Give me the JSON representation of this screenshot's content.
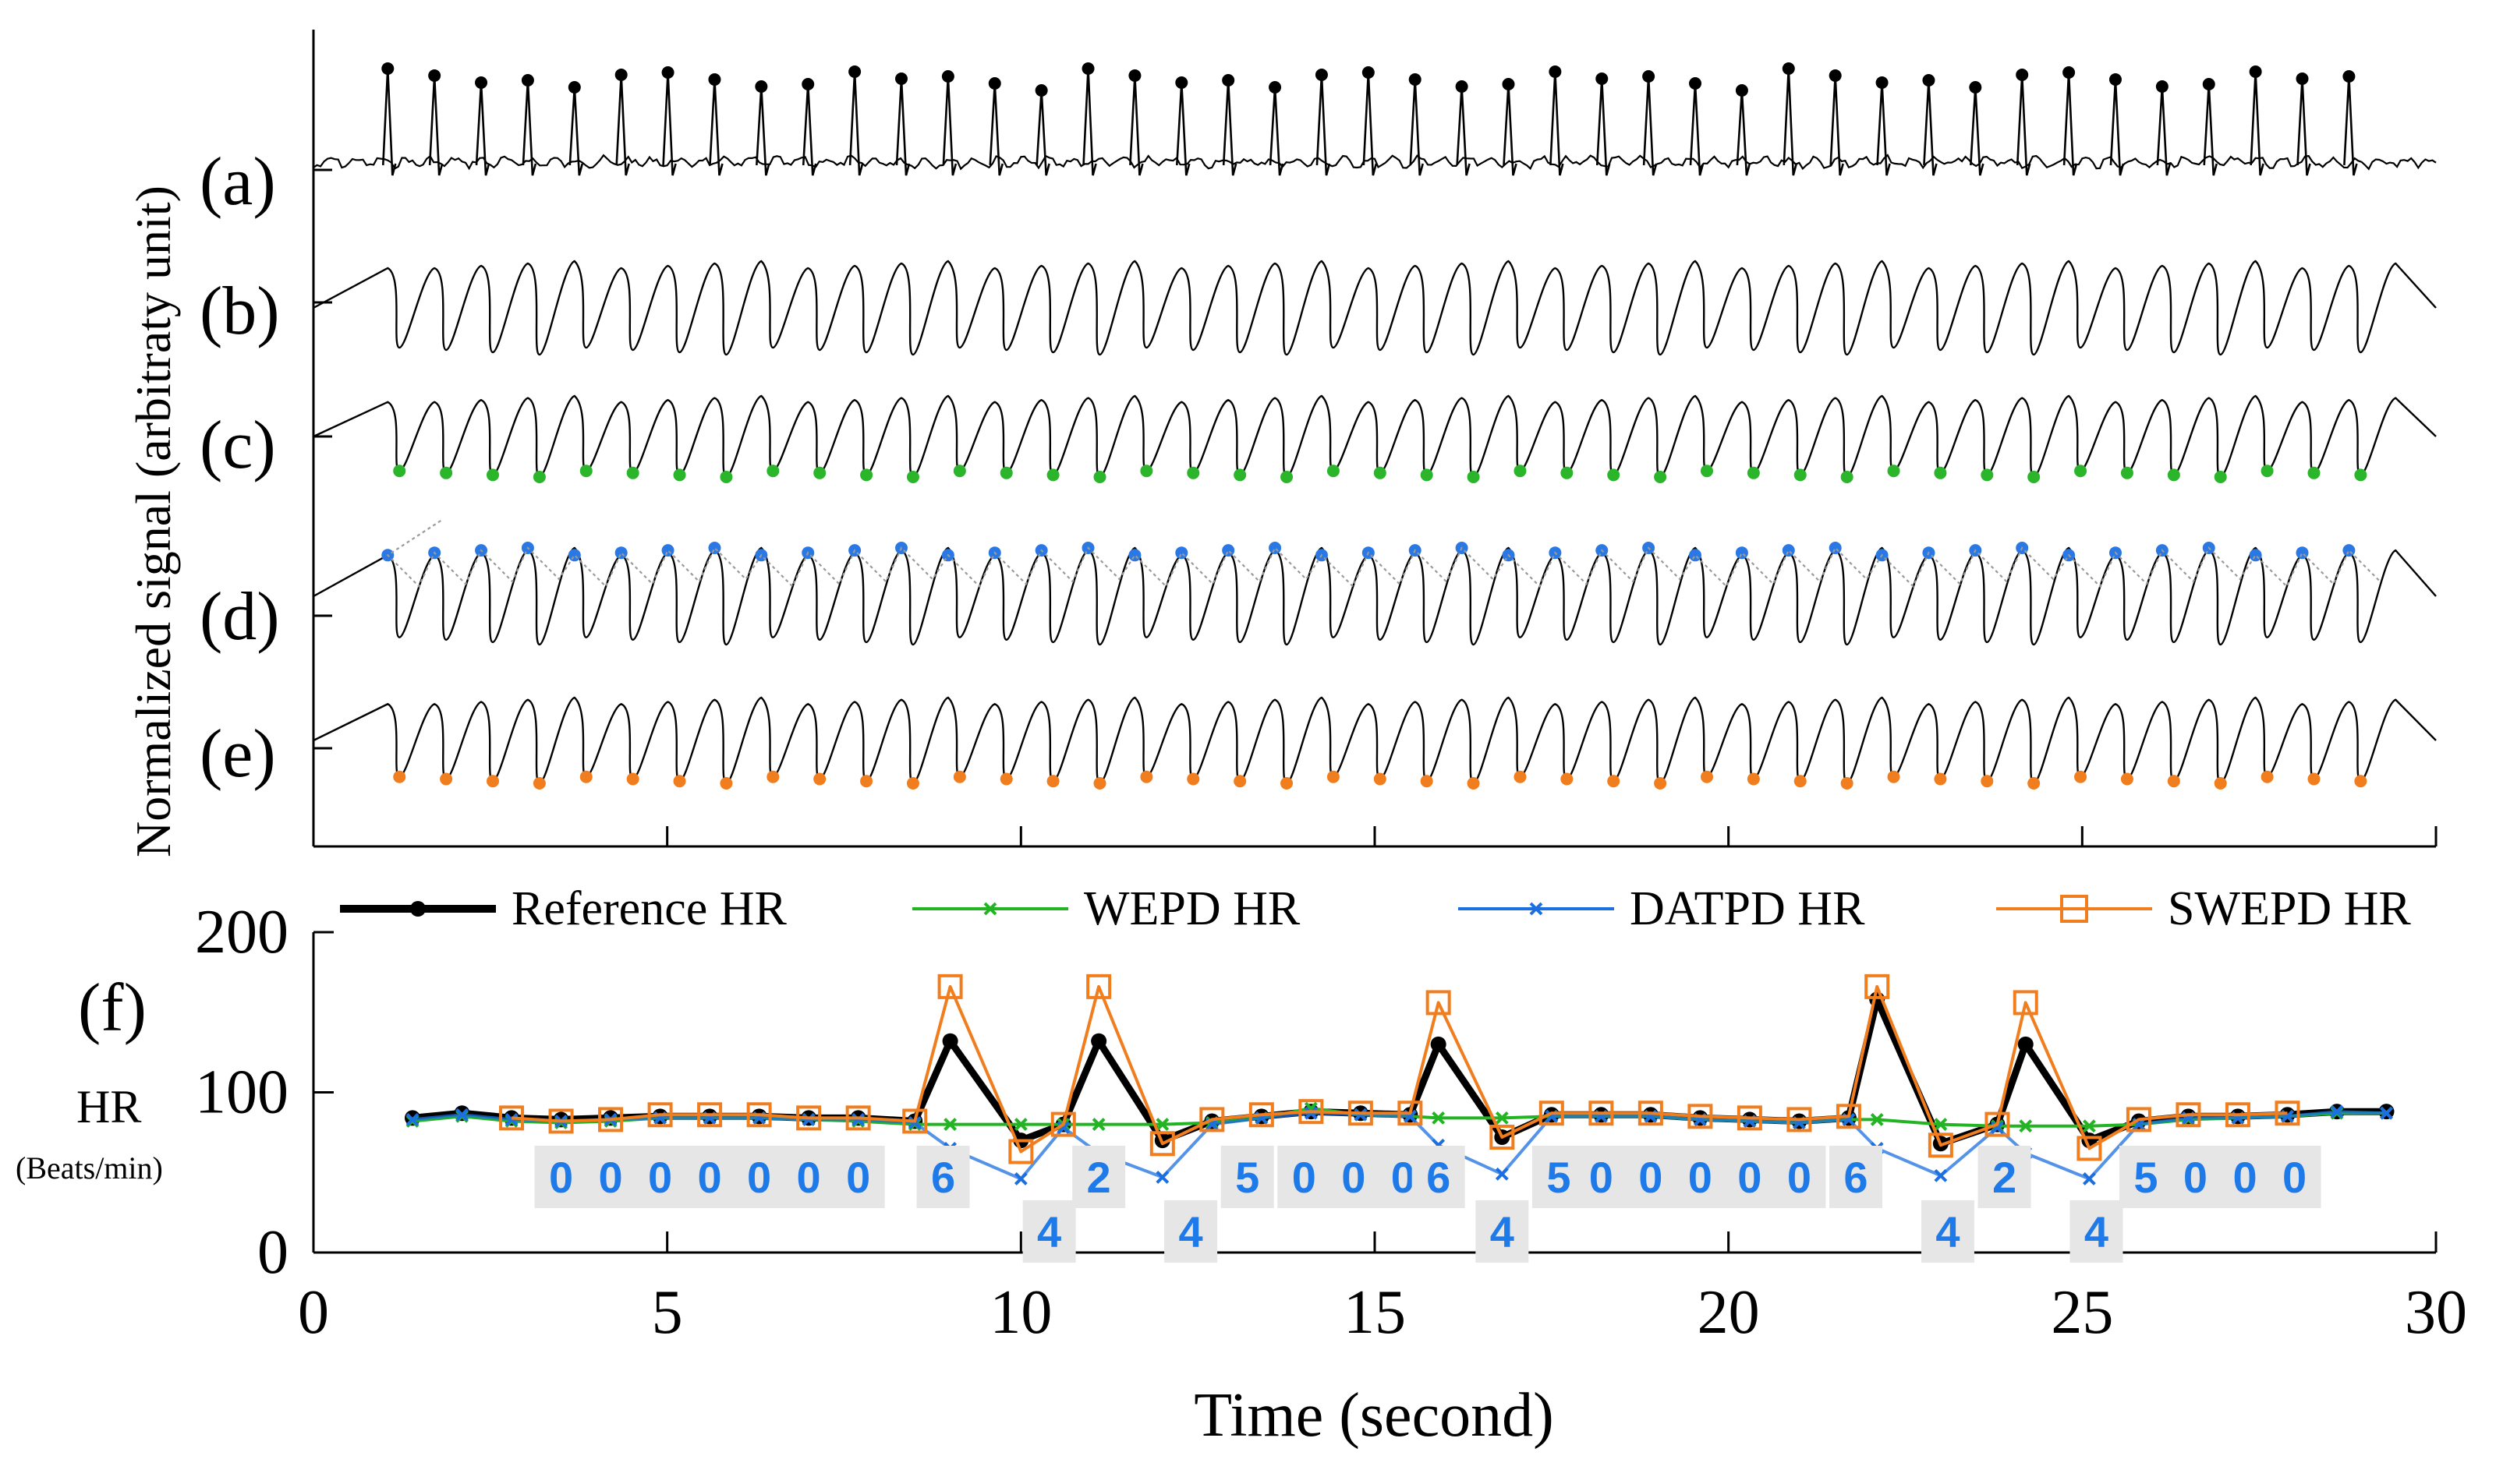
{
  "figure": {
    "y_axis_label_top": "Normalized signal (arbitraty unit)",
    "panel_labels": [
      "(a)",
      "(b)",
      "(c)",
      "(d)",
      "(e)",
      "(f)"
    ]
  },
  "colors": {
    "axis": "#000000",
    "reference": "#000000",
    "wepd": "#22b422",
    "datpd": "#1c6fe0",
    "swepd": "#f07d1e",
    "ecg_peak": "#000000",
    "c_marker": "#2bb52b",
    "d_marker": "#2a78e4",
    "e_marker": "#f07d1e",
    "envelope": "#9a9a9a",
    "badge_bg": "#e6e6e6",
    "badge_text": "#1e7ae8"
  },
  "chart_data": {
    "type": "line",
    "xlabel": "Time (second)",
    "xlim": [
      0,
      30
    ],
    "xticks": [
      0,
      5,
      10,
      15,
      20,
      25,
      30
    ],
    "ylabel_main": "HR",
    "ylabel_unit": "(Beats/min)",
    "ylim": [
      0,
      200
    ],
    "yticks": [
      0,
      100,
      200
    ],
    "legend_position": "top",
    "x": [
      1.4,
      2.1,
      2.8,
      3.5,
      4.2,
      4.9,
      5.6,
      6.3,
      7.0,
      7.7,
      8.5,
      9.0,
      10.0,
      10.6,
      11.1,
      12.0,
      12.7,
      13.4,
      14.1,
      14.8,
      15.5,
      15.9,
      16.8,
      17.5,
      18.2,
      18.9,
      19.6,
      20.3,
      21.0,
      21.7,
      22.1,
      23.0,
      23.8,
      24.2,
      25.1,
      25.8,
      26.5,
      27.2,
      27.9,
      28.6,
      29.3
    ],
    "series": [
      {
        "name": "Reference HR",
        "values": [
          84,
          87,
          84,
          83,
          84,
          85,
          85,
          85,
          84,
          84,
          82,
          132,
          70,
          80,
          132,
          70,
          82,
          85,
          88,
          87,
          86,
          130,
          72,
          86,
          86,
          86,
          84,
          83,
          82,
          84,
          158,
          68,
          80,
          130,
          70,
          82,
          85,
          85,
          86,
          88,
          88
        ]
      },
      {
        "name": "WEPD HR",
        "values": [
          82,
          85,
          82,
          81,
          82,
          84,
          84,
          84,
          83,
          82,
          80,
          80,
          80,
          80,
          80,
          80,
          81,
          84,
          90,
          86,
          85,
          84,
          84,
          85,
          85,
          85,
          83,
          82,
          81,
          83,
          83,
          80,
          79,
          79,
          79,
          80,
          83,
          84,
          85,
          87,
          87
        ]
      },
      {
        "name": "DATPD HR",
        "values": [
          83,
          86,
          83,
          82,
          83,
          84,
          84,
          84,
          83,
          83,
          81,
          65,
          46,
          78,
          62,
          47,
          80,
          84,
          87,
          86,
          85,
          67,
          49,
          85,
          85,
          85,
          83,
          82,
          81,
          83,
          65,
          48,
          78,
          62,
          46,
          80,
          84,
          84,
          85,
          88,
          87
        ]
      },
      {
        "name": "SWEPD HR",
        "values": [
          null,
          null,
          84,
          82,
          83,
          86,
          86,
          86,
          84,
          84,
          82,
          166,
          63,
          80,
          166,
          68,
          83,
          86,
          88,
          87,
          87,
          156,
          72,
          87,
          87,
          87,
          85,
          84,
          83,
          85,
          166,
          67,
          80,
          156,
          65,
          83,
          86,
          86,
          87,
          null,
          null
        ]
      }
    ],
    "error_badges": [
      "0",
      "0",
      "0",
      "0",
      "0",
      "0",
      "0",
      "6",
      "4",
      "2",
      "4",
      "5",
      "0",
      "0",
      "0",
      "6",
      "4",
      "5",
      "0",
      "0",
      "0",
      "0",
      "0",
      "6",
      "4",
      "2",
      "4",
      "5",
      "0",
      "0",
      "0"
    ],
    "annotations": [
      {
        "x": 3.5,
        "level": "mid",
        "text": "0"
      },
      {
        "x": 4.2,
        "level": "mid",
        "text": "0"
      },
      {
        "x": 4.9,
        "level": "mid",
        "text": "0"
      },
      {
        "x": 5.6,
        "level": "mid",
        "text": "0"
      },
      {
        "x": 6.3,
        "level": "mid",
        "text": "0"
      },
      {
        "x": 7.0,
        "level": "mid",
        "text": "0"
      },
      {
        "x": 7.7,
        "level": "mid",
        "text": "0"
      },
      {
        "x": 8.9,
        "level": "mid",
        "text": "6"
      },
      {
        "x": 10.4,
        "level": "low",
        "text": "4"
      },
      {
        "x": 11.1,
        "level": "mid",
        "text": "2"
      },
      {
        "x": 12.4,
        "level": "low",
        "text": "4"
      },
      {
        "x": 13.2,
        "level": "mid",
        "text": "5"
      },
      {
        "x": 14.0,
        "level": "mid",
        "text": "0"
      },
      {
        "x": 14.7,
        "level": "mid",
        "text": "0"
      },
      {
        "x": 15.4,
        "level": "mid",
        "text": "0"
      },
      {
        "x": 15.9,
        "level": "mid",
        "text": "6"
      },
      {
        "x": 16.8,
        "level": "low",
        "text": "4"
      },
      {
        "x": 17.6,
        "level": "mid",
        "text": "5"
      },
      {
        "x": 18.2,
        "level": "mid",
        "text": "0"
      },
      {
        "x": 18.9,
        "level": "mid",
        "text": "0"
      },
      {
        "x": 19.6,
        "level": "mid",
        "text": "0"
      },
      {
        "x": 20.3,
        "level": "mid",
        "text": "0"
      },
      {
        "x": 21.0,
        "level": "mid",
        "text": "0"
      },
      {
        "x": 21.8,
        "level": "mid",
        "text": "6"
      },
      {
        "x": 23.1,
        "level": "low",
        "text": "4"
      },
      {
        "x": 23.9,
        "level": "mid",
        "text": "2"
      },
      {
        "x": 25.2,
        "level": "low",
        "text": "4"
      },
      {
        "x": 25.9,
        "level": "mid",
        "text": "5"
      },
      {
        "x": 26.6,
        "level": "mid",
        "text": "0"
      },
      {
        "x": 27.3,
        "level": "mid",
        "text": "0"
      },
      {
        "x": 28.0,
        "level": "mid",
        "text": "0"
      }
    ]
  }
}
